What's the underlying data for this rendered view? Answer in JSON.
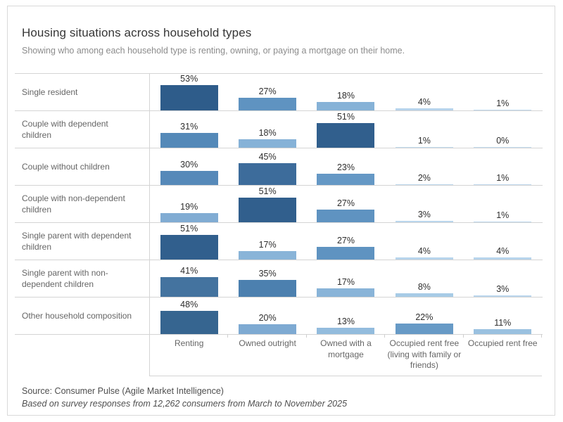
{
  "header": {
    "title": "Housing situations across household types",
    "subtitle": "Showing who among each household type is renting, owning, or paying a mortgage on their home."
  },
  "footer": {
    "source": "Source: Consumer Pulse (Agile Market Intelligence)",
    "note": "Based on survey responses from 12,262 consumers from March to November 2025"
  },
  "chart_data": {
    "type": "bar",
    "title": "Housing situations across household types",
    "subtitle": "Showing who among each household type is renting, owning, or paying a mortgage on their home.",
    "unit": "%",
    "value_label_position": "above",
    "ylim": [
      0,
      55
    ],
    "grid": "row-separators",
    "categories": [
      "Renting",
      "Owned outright",
      "Owned with a mortgage",
      "Occupied rent free (living with family or friends)",
      "Occupied rent free"
    ],
    "rows": [
      {
        "label": "Single resident",
        "values": [
          53,
          27,
          18,
          4,
          1
        ],
        "colors": [
          "#2e5c8a",
          "#5f93c1",
          "#86b2d7",
          "#b7d4ec",
          "#c0daef"
        ]
      },
      {
        "label": "Couple with dependent children",
        "values": [
          31,
          18,
          51,
          1,
          0
        ],
        "colors": [
          "#5489b8",
          "#86b2d7",
          "#315f8d",
          "#c0daef",
          "#c3dcf0"
        ]
      },
      {
        "label": "Couple without children",
        "values": [
          30,
          45,
          23,
          2,
          1
        ],
        "colors": [
          "#5689b9",
          "#3d6c9b",
          "#6598c5",
          "#bdd8ee",
          "#c0daef"
        ]
      },
      {
        "label": "Couple with non-dependent children",
        "values": [
          19,
          51,
          27,
          3,
          1
        ],
        "colors": [
          "#81acd3",
          "#315f8d",
          "#5f93c1",
          "#bad6ed",
          "#c0daef"
        ]
      },
      {
        "label": "Single parent with dependent children",
        "values": [
          51,
          17,
          27,
          4,
          4
        ],
        "colors": [
          "#315f8d",
          "#89b4d8",
          "#5f93c1",
          "#b7d4ec",
          "#b7d4ec"
        ]
      },
      {
        "label": "Single parent with non-dependent children",
        "values": [
          41,
          35,
          17,
          8,
          3
        ],
        "colors": [
          "#44739f",
          "#4c80af",
          "#89b4d8",
          "#a7cbe6",
          "#bad6ed"
        ]
      },
      {
        "label": "Other household composition",
        "values": [
          48,
          20,
          13,
          22,
          11
        ],
        "colors": [
          "#366590",
          "#7eaad2",
          "#93bcdd",
          "#679ac6",
          "#9ac1e0"
        ]
      }
    ],
    "palette": {
      "low": "#c3dcf0",
      "high": "#2e5c8a"
    }
  }
}
